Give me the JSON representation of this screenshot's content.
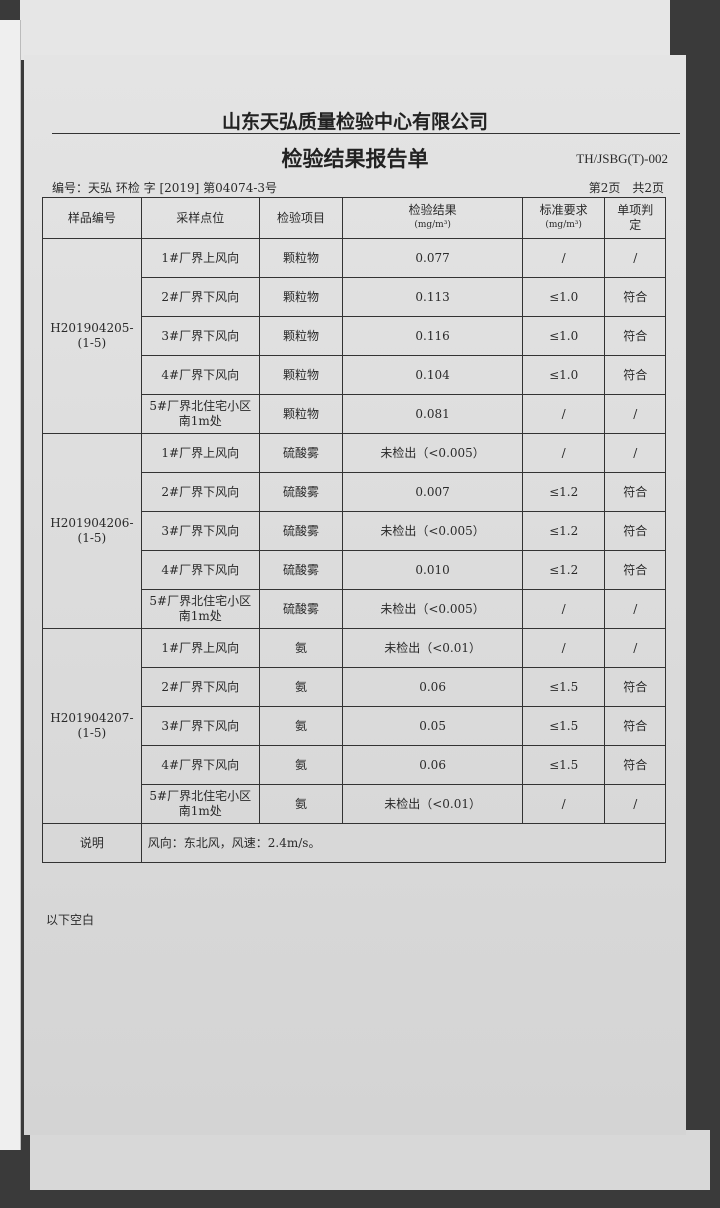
{
  "header": {
    "company": "山东天弘质量检验中心有限公司",
    "title": "检验结果报告单",
    "form_code": "TH/JSBG(T)-002",
    "report_no": "编号：天弘 环检 字 [2019] 第04074-3号",
    "page_info": "第2页　共2页"
  },
  "table": {
    "columns": [
      "样品编号",
      "采样点位",
      "检验项目",
      "检验结果",
      "标准要求",
      "单项判定"
    ],
    "units": {
      "result": "(mg/m³)",
      "standard": "(mg/m³)"
    },
    "groups": [
      {
        "sample_id": "H201904205-(1-5)",
        "rows": [
          {
            "point": "1#厂界上风向",
            "item": "颗粒物",
            "result": "0.077",
            "standard": "/",
            "judgement": "/"
          },
          {
            "point": "2#厂界下风向",
            "item": "颗粒物",
            "result": "0.113",
            "standard": "≤1.0",
            "judgement": "符合"
          },
          {
            "point": "3#厂界下风向",
            "item": "颗粒物",
            "result": "0.116",
            "standard": "≤1.0",
            "judgement": "符合"
          },
          {
            "point": "4#厂界下风向",
            "item": "颗粒物",
            "result": "0.104",
            "standard": "≤1.0",
            "judgement": "符合"
          },
          {
            "point": "5#厂界北住宅小区南1m处",
            "item": "颗粒物",
            "result": "0.081",
            "standard": "/",
            "judgement": "/"
          }
        ]
      },
      {
        "sample_id": "H201904206-(1-5)",
        "rows": [
          {
            "point": "1#厂界上风向",
            "item": "硫酸雾",
            "result": "未检出（<0.005）",
            "standard": "/",
            "judgement": "/"
          },
          {
            "point": "2#厂界下风向",
            "item": "硫酸雾",
            "result": "0.007",
            "standard": "≤1.2",
            "judgement": "符合"
          },
          {
            "point": "3#厂界下风向",
            "item": "硫酸雾",
            "result": "未检出（<0.005）",
            "standard": "≤1.2",
            "judgement": "符合"
          },
          {
            "point": "4#厂界下风向",
            "item": "硫酸雾",
            "result": "0.010",
            "standard": "≤1.2",
            "judgement": "符合"
          },
          {
            "point": "5#厂界北住宅小区南1m处",
            "item": "硫酸雾",
            "result": "未检出（<0.005）",
            "standard": "/",
            "judgement": "/"
          }
        ]
      },
      {
        "sample_id": "H201904207-(1-5)",
        "rows": [
          {
            "point": "1#厂界上风向",
            "item": "氨",
            "result": "未检出（<0.01）",
            "standard": "/",
            "judgement": "/"
          },
          {
            "point": "2#厂界下风向",
            "item": "氨",
            "result": "0.06",
            "standard": "≤1.5",
            "judgement": "符合"
          },
          {
            "point": "3#厂界下风向",
            "item": "氨",
            "result": "0.05",
            "standard": "≤1.5",
            "judgement": "符合"
          },
          {
            "point": "4#厂界下风向",
            "item": "氨",
            "result": "0.06",
            "standard": "≤1.5",
            "judgement": "符合"
          },
          {
            "point": "5#厂界北住宅小区南1m处",
            "item": "氨",
            "result": "未检出（<0.01）",
            "standard": "/",
            "judgement": "/"
          }
        ]
      }
    ],
    "note_label": "说明",
    "note_text": "风向：东北风，风速：2.4m/s。"
  },
  "footer": {
    "blank_text": "以下空白"
  }
}
